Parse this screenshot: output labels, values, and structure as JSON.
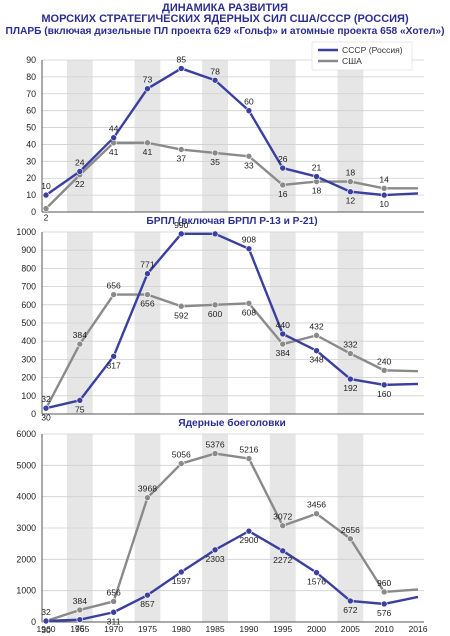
{
  "header": {
    "title_line1": "ДИНАМИКА РАЗВИТИЯ",
    "title_line2": "МОРСКИХ СТРАТЕГИЧЕСКИХ ЯДЕРНЫХ СИЛ США/СССР (РОССИЯ)"
  },
  "colors": {
    "ussr": "#3b3fa0",
    "usa": "#8a8a8a",
    "band": "#e6e6e6",
    "title": "#2b2f8f"
  },
  "chart_data": [
    {
      "type": "line",
      "title": "ПЛАРБ (включая дизельные ПЛ проекта 629 «Гольф» и атомные проекта 658 «Хотел»)",
      "x": [
        1960,
        1965,
        1970,
        1975,
        1980,
        1985,
        1990,
        1995,
        2000,
        2005,
        2010,
        2016
      ],
      "ylim": [
        0,
        90
      ],
      "yticks": [
        0,
        10,
        20,
        30,
        40,
        50,
        60,
        70,
        80,
        90
      ],
      "legend": "top-right",
      "series": [
        {
          "name": "СССР (Россия)",
          "values": [
            10,
            24,
            44,
            73,
            85,
            78,
            60,
            26,
            21,
            12,
            10,
            11
          ]
        },
        {
          "name": "США",
          "values": [
            2,
            22,
            41,
            41,
            37,
            35,
            33,
            16,
            18,
            18,
            14,
            14
          ]
        }
      ],
      "labels": [
        {
          "series": 0,
          "values": [
            10,
            24,
            44,
            73,
            85,
            78,
            60,
            26,
            21,
            12,
            10
          ]
        },
        {
          "series": 1,
          "values": [
            2,
            22,
            41,
            41,
            37,
            35,
            33,
            16,
            18,
            18,
            14
          ]
        }
      ]
    },
    {
      "type": "line",
      "title": "БРПЛ (включая БРПЛ Р-13 и Р-21)",
      "x": [
        1960,
        1965,
        1970,
        1975,
        1980,
        1985,
        1990,
        1995,
        2000,
        2005,
        2010,
        2016
      ],
      "ylim": [
        0,
        1000
      ],
      "yticks": [
        0,
        100,
        200,
        300,
        400,
        500,
        600,
        700,
        800,
        900,
        1000
      ],
      "series": [
        {
          "name": "СССР (Россия)",
          "values": [
            32,
            75,
            317,
            771,
            990,
            990,
            908,
            440,
            348,
            192,
            160,
            165
          ]
        },
        {
          "name": "США",
          "values": [
            30,
            384,
            656,
            656,
            592,
            600,
            608,
            384,
            432,
            332,
            240,
            235
          ]
        }
      ],
      "labels": [
        {
          "series": 0,
          "values": [
            32,
            75,
            317,
            771,
            990,
            null,
            908,
            440,
            348,
            192,
            160
          ]
        },
        {
          "series": 1,
          "values": [
            30,
            384,
            656,
            656,
            592,
            600,
            608,
            384,
            432,
            332,
            240
          ]
        }
      ]
    },
    {
      "type": "line",
      "title": "Ядерные боеголовки",
      "x": [
        1960,
        1965,
        1970,
        1975,
        1980,
        1985,
        1990,
        1995,
        2000,
        2005,
        2010,
        2016
      ],
      "ylim": [
        0,
        6000
      ],
      "yticks": [
        0,
        1000,
        2000,
        3000,
        4000,
        5000,
        6000
      ],
      "series": [
        {
          "name": "СССР (Россия)",
          "values": [
            32,
            75,
            311,
            857,
            1597,
            2303,
            2900,
            2272,
            1576,
            672,
            576,
            800
          ]
        },
        {
          "name": "США",
          "values": [
            30,
            384,
            656,
            3968,
            5056,
            5376,
            5216,
            3072,
            3456,
            2656,
            960,
            1040
          ]
        }
      ],
      "labels": [
        {
          "series": 0,
          "values": [
            32,
            75,
            311,
            857,
            1597,
            2303,
            2900,
            2272,
            1576,
            672,
            576
          ]
        },
        {
          "series": 1,
          "values": [
            30,
            384,
            656,
            3968,
            5056,
            5376,
            5216,
            3072,
            3456,
            2656,
            960
          ]
        }
      ]
    }
  ]
}
